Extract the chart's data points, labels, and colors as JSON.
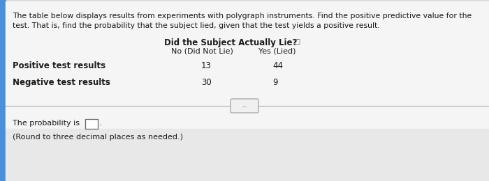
{
  "bg_top_color": "#4a90d9",
  "bg_main_color": "#dcdcdc",
  "bg_lower_color": "#e8e8e8",
  "panel_color": "#ebebeb",
  "title_line1": "The table below displays results from experiments with polygraph instruments. Find the positive predictive value for the",
  "title_line2": "test. That is, find the probability that the subject lied, given that the test yields a positive result.",
  "header_main": "Did the Subject Actually Lie?",
  "col1_header": "No (Did Not Lie)",
  "col2_header": "Yes (Lied)",
  "row1_label": "Positive test results",
  "row2_label": "Negative test results",
  "row1_col1": "13",
  "row1_col2": "44",
  "row2_col1": "30",
  "row2_col2": "9",
  "footer_text1": "The probability is",
  "footer_text2": "(Round to three decimal places as needed.)",
  "text_color": "#1a1a1a",
  "line_color": "#aaaaaa",
  "box_color": "#ffffff",
  "dots_label": "..."
}
